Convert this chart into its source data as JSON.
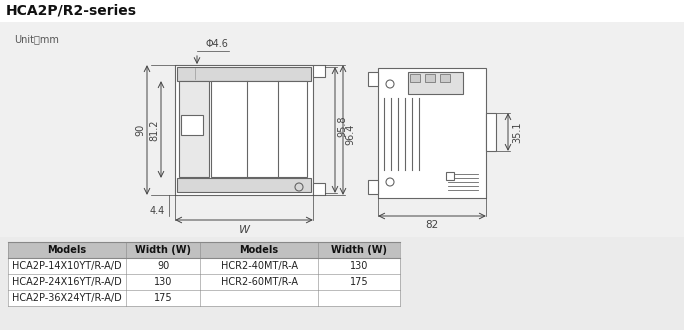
{
  "title": "HCA2P/R2-series",
  "unit_label": "Unit：mm",
  "bg_color": "#ebebeb",
  "panel_color": "#f0f0f0",
  "white": "#ffffff",
  "line_color": "#666666",
  "dim_color": "#444444",
  "dims_left": {
    "phi": "Φ4.6",
    "d90": "90",
    "d81_2": "81.2",
    "d4_4": "4.4",
    "dW": "W",
    "d95_8": "95.8",
    "d96_4": "96.4"
  },
  "dims_right": {
    "d82": "82",
    "d35_1": "35.1"
  },
  "table": {
    "headers": [
      "Models",
      "Width (W)",
      "Models",
      "Width (W)"
    ],
    "rows": [
      [
        "HCA2P-14X10YT/R-A/D",
        "90",
        "HCR2-40MT/R-A",
        "130"
      ],
      [
        "HCA2P-24X16YT/R-A/D",
        "130",
        "HCR2-60MT/R-A",
        "175"
      ],
      [
        "HCA2P-36X24YT/R-A/D",
        "175",
        "",
        ""
      ]
    ]
  }
}
